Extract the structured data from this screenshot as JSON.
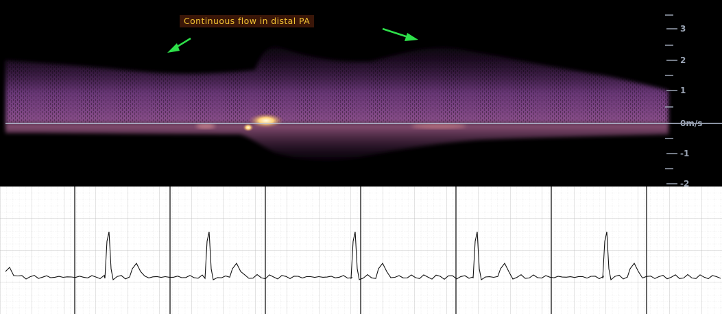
{
  "annotation": {
    "text": "Continuous flow in distal PA",
    "text_color": "#f2c233",
    "background_color": "#3a1608",
    "arrow_color": "#2ee04a"
  },
  "velocity_scale": {
    "unit_label": "0m/s",
    "ticks": [
      "3",
      "2",
      "1",
      "0m/s",
      "-1",
      "-2"
    ],
    "color": "#9aa4b4"
  },
  "colors": {
    "doppler_background": "#000000",
    "spectral_signal": "#7a3f86",
    "spectral_bright": "#ffe7a8",
    "baseline": "#b7c3d8",
    "ecg_trace": "#111111",
    "ecg_grid_major": "#000000",
    "ecg_grid_minor": "#cfcfcf"
  },
  "icons": {
    "arrows": [
      "arrow-down-left-icon",
      "arrow-down-right-icon"
    ]
  }
}
